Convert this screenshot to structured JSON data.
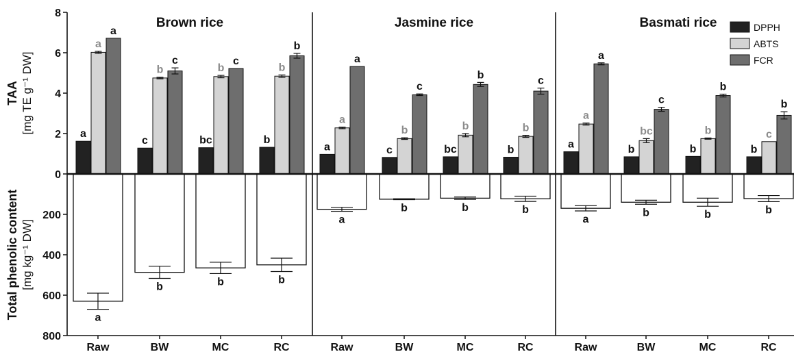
{
  "chart_data": {
    "type": "bar",
    "panels": [
      {
        "title": "Brown rice"
      },
      {
        "title": "Jasmine rice"
      },
      {
        "title": "Basmati rice"
      }
    ],
    "categories": [
      "Raw",
      "BW",
      "MC",
      "RC"
    ],
    "top_axis": {
      "ylabel_main": "TAA",
      "ylabel_unit": "[mg TE g⁻¹ DW]",
      "ylim": [
        0,
        8
      ],
      "ticks": [
        "0",
        "2",
        "4",
        "6",
        "8"
      ]
    },
    "bottom_axis": {
      "ylabel_main": "Total phenolic content",
      "ylabel_unit": "[mg kg⁻¹ DW]",
      "ylim": [
        0,
        800
      ],
      "inverted": true,
      "ticks": [
        "200",
        "400",
        "600",
        "800"
      ]
    },
    "legend": {
      "placement": "top-right",
      "entries": [
        {
          "name": "DPPH",
          "color": "#222222"
        },
        {
          "name": "ABTS",
          "color": "#d4d4d4"
        },
        {
          "name": "FCR",
          "color": "#6e6e6e"
        }
      ]
    },
    "series": [
      {
        "name": "DPPH",
        "color": "#222222",
        "label_color": "#111111",
        "values": [
          [
            1.62,
            1.28,
            1.3,
            1.32
          ],
          [
            0.97,
            0.82,
            0.85,
            0.83
          ],
          [
            1.1,
            0.85,
            0.87,
            0.85
          ]
        ],
        "errors": [
          [
            0,
            0,
            0,
            0
          ],
          [
            0,
            0,
            0,
            0
          ],
          [
            0,
            0,
            0,
            0
          ]
        ],
        "labels": [
          [
            "a",
            "c",
            "bc",
            "b"
          ],
          [
            "a",
            "c",
            "bc",
            "b"
          ],
          [
            "a",
            "b",
            "b",
            "b"
          ]
        ]
      },
      {
        "name": "ABTS",
        "color": "#d4d4d4",
        "label_color": "#8c8c8c",
        "values": [
          [
            6.02,
            4.75,
            4.82,
            4.84
          ],
          [
            2.28,
            1.75,
            1.92,
            1.86
          ],
          [
            2.47,
            1.65,
            1.75,
            1.6
          ]
        ],
        "errors": [
          [
            0.05,
            0.04,
            0.06,
            0.06
          ],
          [
            0.04,
            0.04,
            0.08,
            0.05
          ],
          [
            0.05,
            0.1,
            0.03,
            0
          ]
        ],
        "labels": [
          [
            "a",
            "b",
            "b",
            "b"
          ],
          [
            "a",
            "b",
            "b",
            "b"
          ],
          [
            "a",
            "bc",
            "b",
            "c"
          ]
        ]
      },
      {
        "name": "FCR",
        "color": "#6e6e6e",
        "label_color": "#111111",
        "values": [
          [
            6.72,
            5.1,
            5.22,
            5.85
          ],
          [
            5.32,
            3.92,
            4.43,
            4.1
          ],
          [
            5.45,
            3.2,
            3.88,
            2.9
          ]
        ],
        "errors": [
          [
            0,
            0.15,
            0,
            0.12
          ],
          [
            0,
            0.04,
            0.1,
            0.15
          ],
          [
            0.05,
            0.1,
            0.07,
            0.18
          ]
        ],
        "labels": [
          [
            "a",
            "c",
            "c",
            "b"
          ],
          [
            "a",
            "c",
            "b",
            "c"
          ],
          [
            "a",
            "c",
            "b",
            "b"
          ]
        ]
      }
    ],
    "phenolic": {
      "values": [
        [
          630,
          487,
          465,
          450
        ],
        [
          175,
          125,
          120,
          123
        ],
        [
          170,
          140,
          140,
          122
        ]
      ],
      "errors": [
        [
          40,
          30,
          28,
          33
        ],
        [
          10,
          2,
          6,
          13
        ],
        [
          13,
          10,
          20,
          15
        ]
      ],
      "labels": [
        [
          "a",
          "b",
          "b",
          "b"
        ],
        [
          "a",
          "b",
          "b",
          "b"
        ],
        [
          "a",
          "b",
          "b",
          "b"
        ]
      ]
    }
  }
}
